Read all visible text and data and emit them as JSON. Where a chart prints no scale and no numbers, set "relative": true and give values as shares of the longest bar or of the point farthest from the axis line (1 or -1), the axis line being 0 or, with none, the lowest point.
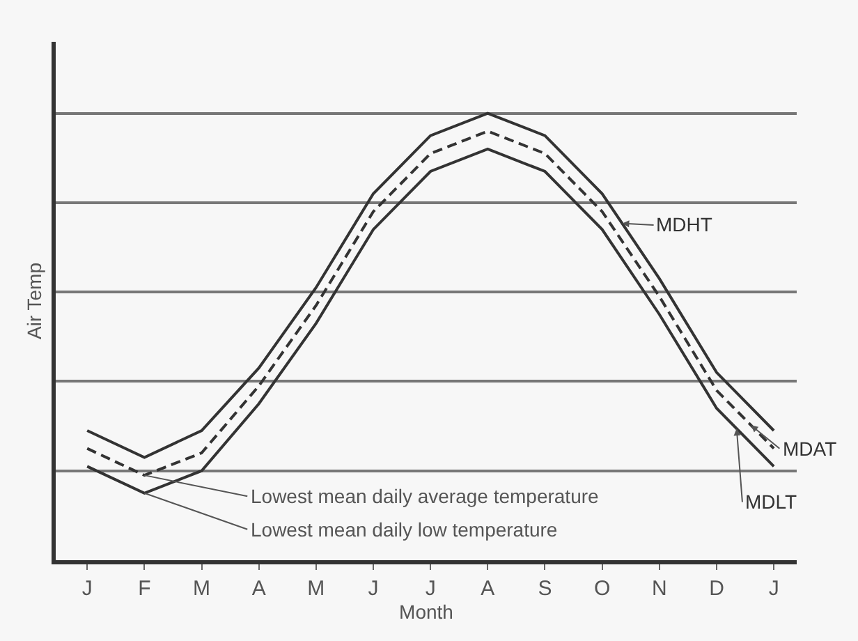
{
  "chart_data": {
    "type": "line",
    "relative": true,
    "xlabel": "Month",
    "ylabel": "Air Temp",
    "categories": [
      "J",
      "F",
      "M",
      "A",
      "M",
      "J",
      "J",
      "A",
      "S",
      "O",
      "N",
      "D",
      "J"
    ],
    "series": [
      {
        "name": "MDHT",
        "color": "#333333",
        "line_style": "solid",
        "values": [
          0.29,
          0.23,
          0.29,
          0.43,
          0.61,
          0.82,
          0.95,
          1.0,
          0.95,
          0.82,
          0.63,
          0.42,
          0.29
        ]
      },
      {
        "name": "MDAT",
        "color": "#333333",
        "line_style": "dashed",
        "values": [
          0.25,
          0.19,
          0.24,
          0.39,
          0.57,
          0.78,
          0.91,
          0.96,
          0.91,
          0.78,
          0.59,
          0.38,
          0.25
        ]
      },
      {
        "name": "MDLT",
        "color": "#333333",
        "line_style": "solid",
        "values": [
          0.21,
          0.15,
          0.2,
          0.35,
          0.53,
          0.74,
          0.87,
          0.92,
          0.87,
          0.74,
          0.55,
          0.34,
          0.21
        ]
      }
    ],
    "annotations": [
      {
        "text": "Lowest mean daily average temperature",
        "x": "F",
        "y": 0.19
      },
      {
        "text": "Lowest mean daily low temperature",
        "x": "F",
        "y": 0.15
      }
    ],
    "grid": "y",
    "legend": false,
    "marker": "none"
  }
}
